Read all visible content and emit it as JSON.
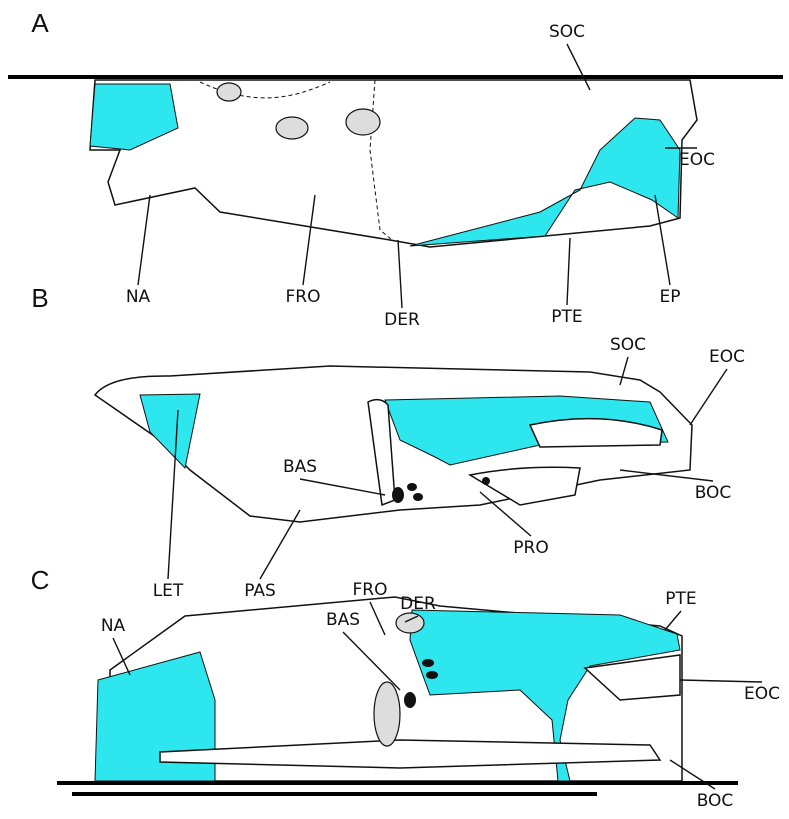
{
  "panels": [
    {
      "letter": "A",
      "labels": [
        "SOC",
        "EOC",
        "NA",
        "FRO",
        "DER",
        "PTE",
        "EP"
      ]
    },
    {
      "letter": "B",
      "labels": [
        "SOC",
        "EOC",
        "BAS",
        "BOC",
        "PRO",
        "LET",
        "PAS"
      ]
    },
    {
      "letter": "C",
      "labels": [
        "NA",
        "FRO",
        "DER",
        "BAS",
        "PTE",
        "EOC",
        "BOC"
      ]
    }
  ]
}
